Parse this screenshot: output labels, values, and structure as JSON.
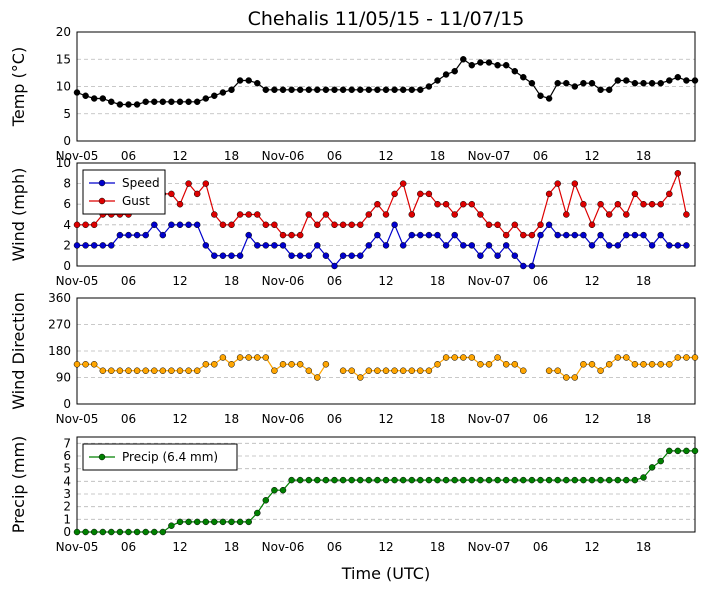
{
  "title": "Chehalis 11/05/15 - 11/07/15",
  "x_axis_label": "Time (UTC)",
  "x_tick_labels": [
    "Nov-05",
    "06",
    "12",
    "18",
    "Nov-06",
    "06",
    "12",
    "18",
    "Nov-07",
    "06",
    "12",
    "18"
  ],
  "chart_data": [
    {
      "type": "line",
      "name": "temperature",
      "ylabel": "Temp (°C)",
      "ylim": [
        0,
        20
      ],
      "yticks": [
        0,
        5,
        10,
        15,
        20
      ],
      "x_unit": "hours since Nov-05 00 UTC",
      "x_start": 0,
      "x_step": 1,
      "series": [
        {
          "color": "#000000",
          "values": [
            8.9,
            8.3,
            7.8,
            7.8,
            7.2,
            6.7,
            6.7,
            6.7,
            7.2,
            7.2,
            7.2,
            7.2,
            7.2,
            7.2,
            7.2,
            7.8,
            8.3,
            8.9,
            9.4,
            11.1,
            11.1,
            10.6,
            9.4,
            9.4,
            9.4,
            9.4,
            9.4,
            9.4,
            9.4,
            9.4,
            9.4,
            9.4,
            9.4,
            9.4,
            9.4,
            9.4,
            9.4,
            9.4,
            9.4,
            9.4,
            9.4,
            10.0,
            11.1,
            12.2,
            12.8,
            15.0,
            13.9,
            14.4,
            14.4,
            13.9,
            13.9,
            12.8,
            11.7,
            10.6,
            8.3,
            7.8,
            10.6,
            10.6,
            10.0,
            10.6,
            10.6,
            9.4,
            9.4,
            11.1,
            11.1,
            10.6,
            10.6,
            10.6,
            10.6,
            11.1,
            11.7,
            11.1,
            11.1
          ]
        }
      ]
    },
    {
      "type": "line",
      "name": "wind",
      "ylabel": "Wind (mph)",
      "ylim": [
        0,
        10
      ],
      "yticks": [
        0,
        2,
        4,
        6,
        8,
        10
      ],
      "x_unit": "hours since Nov-05 00 UTC",
      "x_start": 0,
      "x_step": 1,
      "legend": "top-left",
      "series": [
        {
          "name": "Speed",
          "color": "#0000cc",
          "values": [
            2,
            2,
            2,
            2,
            2,
            3,
            3,
            3,
            3,
            4,
            3,
            4,
            4,
            4,
            4,
            2,
            1,
            1,
            1,
            1,
            3,
            2,
            2,
            2,
            2,
            1,
            1,
            1,
            2,
            1,
            0,
            1,
            1,
            1,
            2,
            3,
            2,
            4,
            2,
            3,
            3,
            3,
            3,
            2,
            3,
            2,
            2,
            1,
            2,
            1,
            2,
            1,
            0,
            0,
            3,
            4,
            3,
            3,
            3,
            3,
            2,
            3,
            2,
            2,
            3,
            3,
            3,
            2,
            3,
            2,
            2,
            2
          ]
        },
        {
          "name": "Gust",
          "color": "#dd0000",
          "values": [
            4,
            4,
            4,
            5,
            5,
            5,
            5,
            null,
            null,
            null,
            7,
            7,
            6,
            8,
            7,
            8,
            5,
            4,
            4,
            5,
            5,
            5,
            4,
            4,
            3,
            3,
            3,
            5,
            4,
            5,
            4,
            4,
            4,
            4,
            5,
            6,
            5,
            7,
            8,
            5,
            7,
            7,
            6,
            6,
            5,
            6,
            6,
            5,
            4,
            4,
            3,
            4,
            3,
            3,
            4,
            7,
            8,
            5,
            8,
            6,
            4,
            6,
            5,
            6,
            5,
            7,
            6,
            6,
            6,
            7,
            9,
            5
          ]
        }
      ]
    },
    {
      "type": "scatter",
      "name": "wind-direction",
      "ylabel": "Wind Direction",
      "ylim": [
        0,
        360
      ],
      "yticks": [
        0,
        90,
        180,
        270,
        360
      ],
      "x_unit": "hours since Nov-05 00 UTC",
      "x_start": 0,
      "x_step": 1,
      "series": [
        {
          "color": "#ffa500",
          "values": [
            135,
            135,
            135,
            113,
            113,
            113,
            113,
            113,
            113,
            113,
            113,
            113,
            113,
            113,
            113,
            135,
            135,
            158,
            135,
            158,
            158,
            158,
            158,
            113,
            135,
            135,
            135,
            113,
            90,
            135,
            null,
            113,
            113,
            90,
            113,
            113,
            113,
            113,
            113,
            113,
            113,
            113,
            135,
            158,
            158,
            158,
            158,
            135,
            135,
            158,
            135,
            135,
            113,
            null,
            null,
            113,
            113,
            90,
            90,
            135,
            135,
            113,
            135,
            158,
            158,
            135,
            135,
            135,
            135,
            135,
            158,
            158,
            158
          ]
        }
      ]
    },
    {
      "type": "line",
      "name": "precip",
      "ylabel": "Precip (mm)",
      "ylim": [
        0,
        7.5
      ],
      "yticks": [
        0,
        1,
        2,
        3,
        4,
        5,
        6,
        7
      ],
      "x_unit": "hours since Nov-05 00 UTC",
      "x_start": 0,
      "x_step": 1,
      "legend": "top-left",
      "series": [
        {
          "name": "Precip (6.4 mm)",
          "color": "#008000",
          "values": [
            0,
            0,
            0,
            0,
            0,
            0,
            0,
            0,
            0,
            0,
            0,
            0.5,
            0.8,
            0.8,
            0.8,
            0.8,
            0.8,
            0.8,
            0.8,
            0.8,
            0.8,
            1.5,
            2.5,
            3.3,
            3.3,
            4.1,
            4.1,
            4.1,
            4.1,
            4.1,
            4.1,
            4.1,
            4.1,
            4.1,
            4.1,
            4.1,
            4.1,
            4.1,
            4.1,
            4.1,
            4.1,
            4.1,
            4.1,
            4.1,
            4.1,
            4.1,
            4.1,
            4.1,
            4.1,
            4.1,
            4.1,
            4.1,
            4.1,
            4.1,
            4.1,
            4.1,
            4.1,
            4.1,
            4.1,
            4.1,
            4.1,
            4.1,
            4.1,
            4.1,
            4.1,
            4.1,
            4.3,
            5.1,
            5.6,
            6.4,
            6.4,
            6.4,
            6.4
          ]
        }
      ]
    }
  ]
}
